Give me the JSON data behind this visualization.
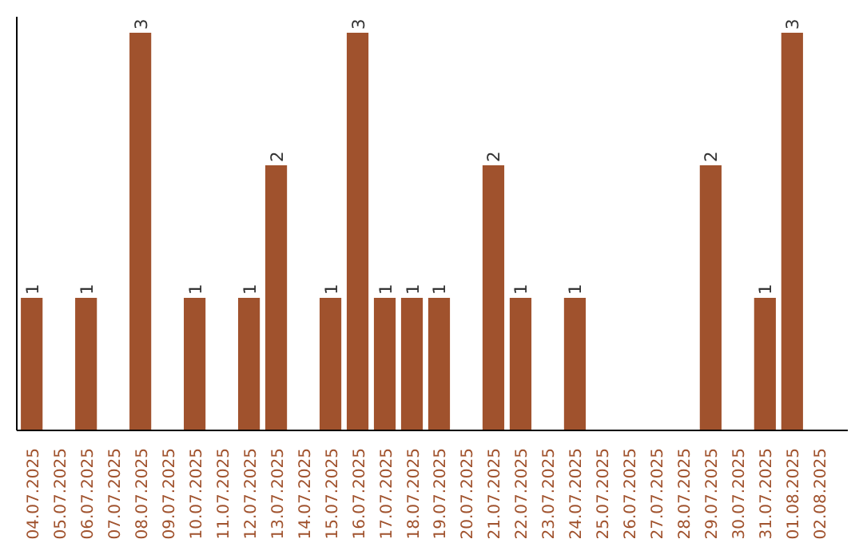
{
  "chart_data": {
    "type": "bar",
    "categories": [
      "04.07.2025",
      "05.07.2025",
      "06.07.2025",
      "07.07.2025",
      "08.07.2025",
      "09.07.2025",
      "10.07.2025",
      "11.07.2025",
      "12.07.2025",
      "13.07.2025",
      "14.07.2025",
      "15.07.2025",
      "16.07.2025",
      "17.07.2025",
      "18.07.2025",
      "19.07.2025",
      "20.07.2025",
      "21.07.2025",
      "22.07.2025",
      "23.07.2025",
      "24.07.2025",
      "25.07.2025",
      "26.07.2025",
      "27.07.2025",
      "28.07.2025",
      "29.07.2025",
      "30.07.2025",
      "31.07.2025",
      "01.08.2025",
      "02.08.2025"
    ],
    "values": [
      1,
      0,
      1,
      0,
      3,
      0,
      1,
      0,
      1,
      2,
      0,
      1,
      3,
      1,
      1,
      1,
      0,
      2,
      1,
      0,
      1,
      0,
      0,
      0,
      0,
      2,
      0,
      1,
      3,
      0
    ],
    "value_labels": [
      "1",
      null,
      "1",
      null,
      "3",
      null,
      "1",
      null,
      "1",
      "2",
      null,
      "1",
      "3",
      "1",
      "1",
      "1",
      null,
      "2",
      "1",
      null,
      "1",
      null,
      null,
      null,
      null,
      "2",
      null,
      "1",
      "3",
      null
    ],
    "color": "#a0522d",
    "tick_labels": "x"
  }
}
